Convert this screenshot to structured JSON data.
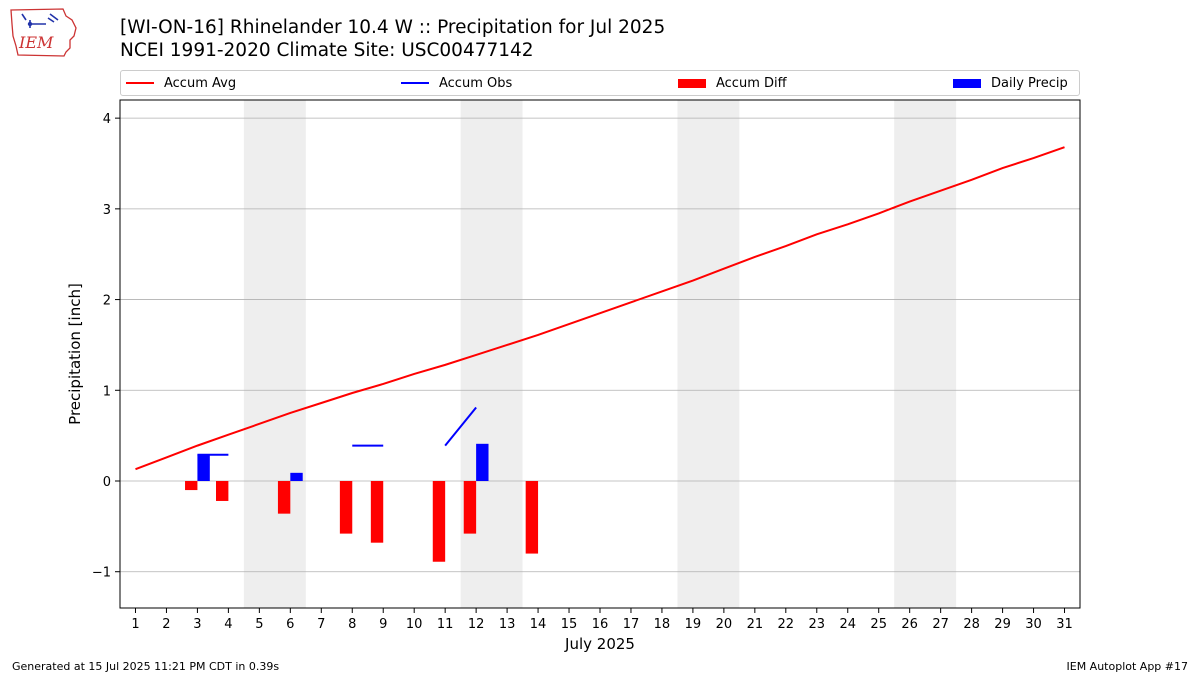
{
  "header": {
    "title_line1": "[WI-ON-16] Rhinelander 10.4 W :: Precipitation for Jul 2025",
    "title_line2": "NCEI 1991-2020 Climate Site: USC00477142",
    "logo_text": "IEM"
  },
  "footer": {
    "generated": "Generated at 15 Jul 2025 11:21 PM CDT in 0.39s",
    "app": "IEM Autoplot App #17"
  },
  "colors": {
    "accum_avg": "#ff0000",
    "accum_obs": "#0000ff",
    "accum_diff": "#ff0000",
    "daily_precip": "#0000ff",
    "weekend_shade": "#eeeeee",
    "grid": "#b0b0b0"
  },
  "chart_data": {
    "type": "line",
    "xlabel": "July 2025",
    "ylabel": "Precipitation [inch]",
    "ylim": [
      -1.4,
      4.2
    ],
    "xlim": [
      0.5,
      31.5
    ],
    "yticks": [
      -1,
      0,
      1,
      2,
      3,
      4
    ],
    "ytick_labels": [
      "−1",
      "0",
      "1",
      "2",
      "3",
      "4"
    ],
    "xticks": [
      1,
      2,
      3,
      4,
      5,
      6,
      7,
      8,
      9,
      10,
      11,
      12,
      13,
      14,
      15,
      16,
      17,
      18,
      19,
      20,
      21,
      22,
      23,
      24,
      25,
      26,
      27,
      28,
      29,
      30,
      31
    ],
    "grid": "horizontal",
    "legend_position": "top",
    "legend": [
      "Accum Avg",
      "Accum Obs",
      "Accum Diff",
      "Daily Precip"
    ],
    "weekend_bands": [
      [
        4.5,
        6.5
      ],
      [
        11.5,
        13.5
      ],
      [
        18.5,
        20.5
      ],
      [
        25.5,
        27.5
      ]
    ],
    "accum_avg": {
      "name": "Accum Avg",
      "x": [
        1,
        2,
        3,
        4,
        5,
        6,
        7,
        8,
        9,
        10,
        11,
        12,
        13,
        14,
        15,
        16,
        17,
        18,
        19,
        20,
        21,
        22,
        23,
        24,
        25,
        26,
        27,
        28,
        29,
        30,
        31
      ],
      "y": [
        0.13,
        0.26,
        0.39,
        0.51,
        0.63,
        0.75,
        0.86,
        0.97,
        1.07,
        1.18,
        1.28,
        1.39,
        1.5,
        1.61,
        1.73,
        1.85,
        1.97,
        2.09,
        2.21,
        2.34,
        2.47,
        2.59,
        2.72,
        2.83,
        2.95,
        3.08,
        3.2,
        3.32,
        3.45,
        3.56,
        3.68
      ]
    },
    "accum_obs": {
      "name": "Accum Obs",
      "segments": [
        {
          "x": [
            3,
            4
          ],
          "y": [
            0.29,
            0.29
          ]
        },
        {
          "x": [
            8,
            9
          ],
          "y": [
            0.39,
            0.39
          ]
        },
        {
          "x": [
            11,
            12
          ],
          "y": [
            0.39,
            0.81
          ]
        }
      ]
    },
    "accum_diff": {
      "name": "Accum Diff",
      "x": [
        3,
        4,
        6,
        8,
        9,
        11,
        12,
        14
      ],
      "y": [
        -0.1,
        -0.22,
        -0.36,
        -0.58,
        -0.68,
        -0.89,
        -0.58,
        -0.8
      ]
    },
    "daily_precip": {
      "name": "Daily Precip",
      "x": [
        3,
        6,
        12
      ],
      "y": [
        0.29,
        0.09,
        0.41
      ]
    }
  }
}
